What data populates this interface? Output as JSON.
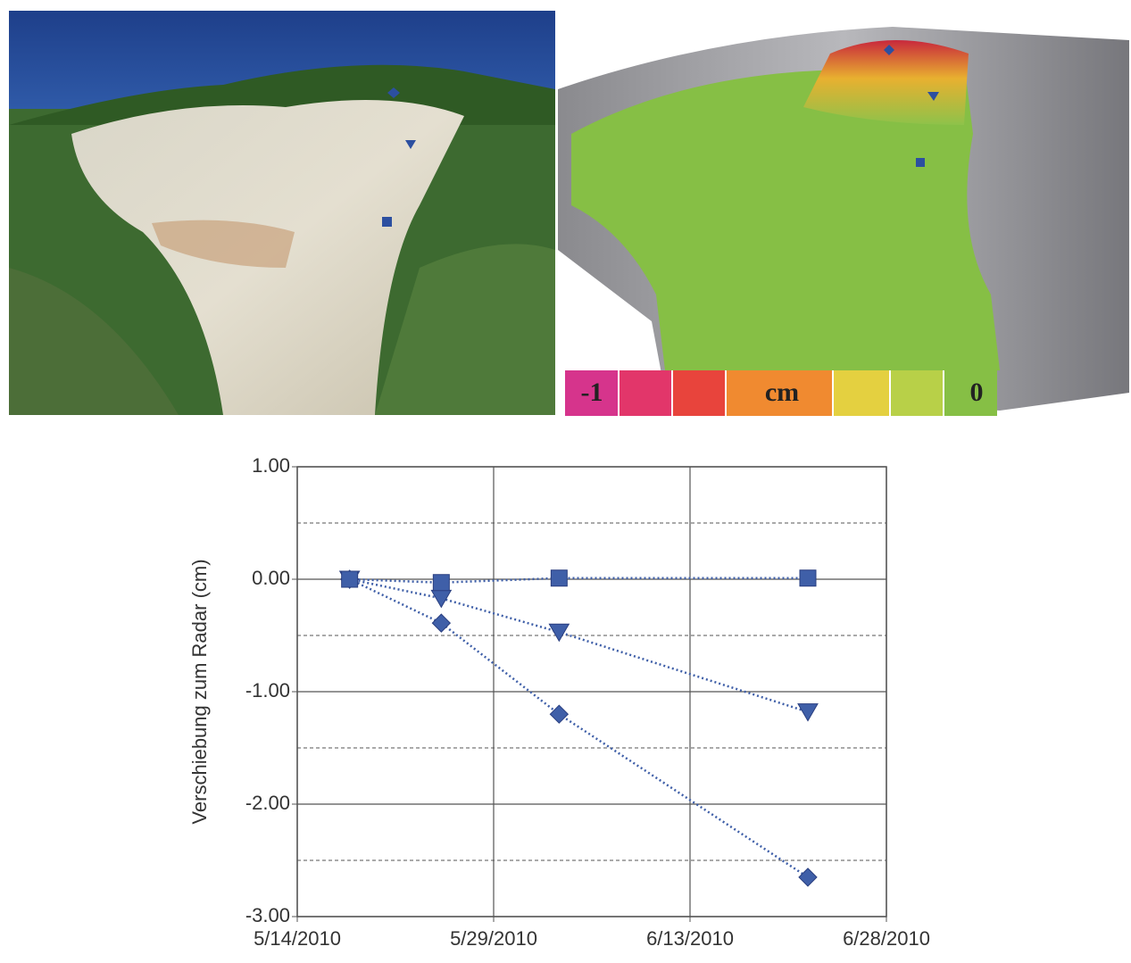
{
  "colorbar": {
    "labels": [
      "-1",
      "cm",
      "0"
    ]
  },
  "chart_data": {
    "type": "line",
    "y_label": "Verschiebung zum Radar (cm)",
    "x": [
      "2010-05-18",
      "2010-05-25",
      "2010-06-03",
      "2010-06-22"
    ],
    "series": [
      {
        "color": "#3f5fa8",
        "marker": "diamond",
        "values": [
          0,
          -0.39,
          -1.2,
          -2.65
        ]
      },
      {
        "color": "#3f5fa8",
        "marker": "triangle",
        "values": [
          0,
          -0.17,
          -0.47,
          -1.18
        ]
      },
      {
        "color": "#3f5fa8",
        "marker": "square",
        "values": [
          0,
          -0.03,
          0.01,
          0.01
        ]
      }
    ],
    "xlim": [
      "2010-05-14",
      "2010-06-28"
    ],
    "xticks": [
      {
        "value": "2010-05-14",
        "label": "5/14/2010"
      },
      {
        "value": "2010-05-29",
        "label": "5/29/2010"
      },
      {
        "value": "2010-06-13",
        "label": "6/13/2010"
      },
      {
        "value": "2010-06-28",
        "label": "6/28/2010"
      }
    ],
    "ylim": [
      -3,
      1
    ],
    "yticks": [
      {
        "value": -3,
        "label": "-3.00"
      },
      {
        "value": -2,
        "label": "-2.00"
      },
      {
        "value": -1,
        "label": "-1.00"
      },
      {
        "value": 0,
        "label": "0.00"
      },
      {
        "value": 1,
        "label": "1.00"
      }
    ],
    "minor_grid": [
      -2.5,
      -1.5,
      -0.5,
      0.5
    ],
    "grid": true
  }
}
